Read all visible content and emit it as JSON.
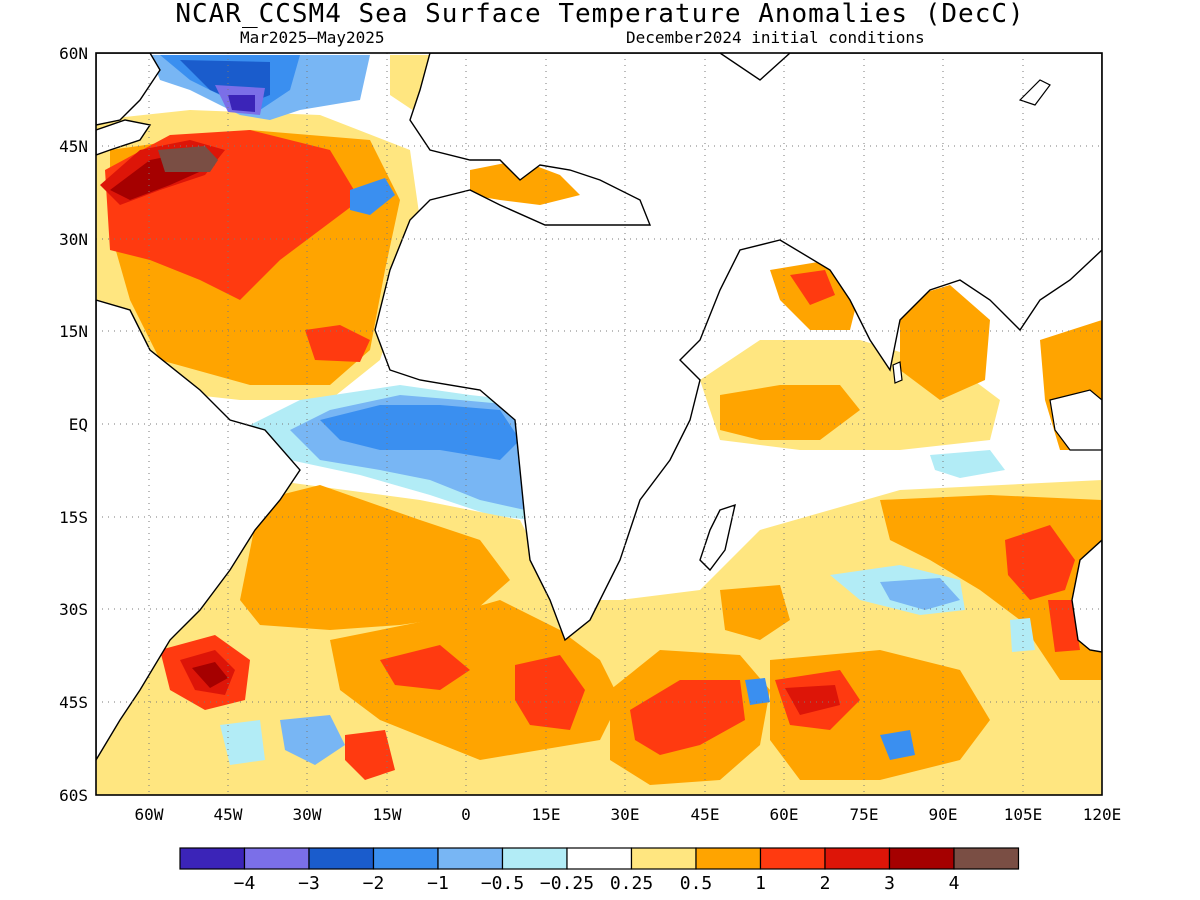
{
  "title": "NCAR_CCSM4 Sea Surface Temperature Anomalies (DecC)",
  "subtitle_left": "Mar2025—May2025",
  "subtitle_right": "December2024 initial conditions",
  "map": {
    "lon_range": [
      -70,
      120
    ],
    "lat_range": [
      -60,
      60
    ],
    "lat_ticks": [
      "60N",
      "45N",
      "30N",
      "15N",
      "EQ",
      "15S",
      "30S",
      "45S",
      "60S"
    ],
    "lon_ticks": [
      "60W",
      "45W",
      "30W",
      "15W",
      "0",
      "15E",
      "30E",
      "45E",
      "60E",
      "75E",
      "90E",
      "105E",
      "120E"
    ],
    "grid": "dotted",
    "land_color": "#ffffff",
    "coastline_color": "#000000"
  },
  "colorbar": {
    "colors": [
      "#3b24b8",
      "#7b6fe8",
      "#1a5ccc",
      "#3a8ff0",
      "#78b6f4",
      "#b2ecf6",
      "#ffffff",
      "#ffe680",
      "#ffa400",
      "#ff3a10",
      "#dd1508",
      "#a50000",
      "#7a4e44"
    ],
    "labels": [
      "−4",
      "−3",
      "−2",
      "−1",
      "−0.5",
      "−0.25",
      "0.25",
      "0.5",
      "1",
      "2",
      "3",
      "4"
    ]
  }
}
